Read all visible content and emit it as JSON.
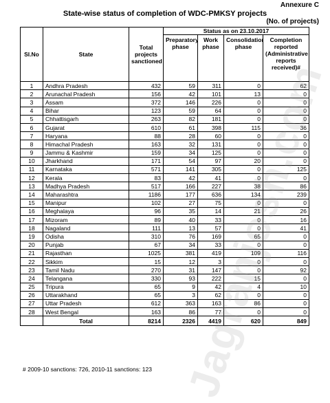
{
  "annexure": "Annexure C",
  "title": "State-wise status of completion of WDC-PMKSY projects",
  "unit": "(No. of projects)",
  "status_header": "Status as on 23.10.2017",
  "columns": {
    "sl": "Sl.No",
    "state": "State",
    "total": "Total projects sanctioned",
    "prep": "Preparatory phase",
    "work": "Work phase",
    "consol": "Consolidation phase",
    "completion": "Completion reported (Administrative reports received)#"
  },
  "rows": [
    {
      "sl": "1",
      "state": "Andhra Pradesh",
      "total": "432",
      "prep": "59",
      "work": "311",
      "consol": "0",
      "comp": "62"
    },
    {
      "sl": "2",
      "state": "Arunachal Pradesh",
      "total": "156",
      "prep": "42",
      "work": "101",
      "consol": "13",
      "comp": "0"
    },
    {
      "sl": "3",
      "state": "Assam",
      "total": "372",
      "prep": "146",
      "work": "226",
      "consol": "0",
      "comp": "0"
    },
    {
      "sl": "4",
      "state": "Bihar",
      "total": "123",
      "prep": "59",
      "work": "64",
      "consol": "0",
      "comp": "0"
    },
    {
      "sl": "5",
      "state": "Chhattisgarh",
      "total": "263",
      "prep": "82",
      "work": "181",
      "consol": "0",
      "comp": "0"
    },
    {
      "sl": "6",
      "state": "Gujarat",
      "total": "610",
      "prep": "61",
      "work": "398",
      "consol": "115",
      "comp": "36"
    },
    {
      "sl": "7",
      "state": "Haryana",
      "total": "88",
      "prep": "28",
      "work": "60",
      "consol": "0",
      "comp": "0"
    },
    {
      "sl": "8",
      "state": "Himachal Pradesh",
      "total": "163",
      "prep": "32",
      "work": "131",
      "consol": "0",
      "comp": "0"
    },
    {
      "sl": "9",
      "state": "Jammu & Kashmir",
      "total": "159",
      "prep": "34",
      "work": "125",
      "consol": "0",
      "comp": "0"
    },
    {
      "sl": "10",
      "state": "Jharkhand",
      "total": "171",
      "prep": "54",
      "work": "97",
      "consol": "20",
      "comp": "0"
    },
    {
      "sl": "11",
      "state": "Karnataka",
      "total": "571",
      "prep": "141",
      "work": "305",
      "consol": "0",
      "comp": "125"
    },
    {
      "sl": "12",
      "state": "Kerala",
      "total": "83",
      "prep": "42",
      "work": "41",
      "consol": "0",
      "comp": "0"
    },
    {
      "sl": "13",
      "state": "Madhya Pradesh",
      "total": "517",
      "prep": "166",
      "work": "227",
      "consol": "38",
      "comp": "86"
    },
    {
      "sl": "14",
      "state": "Maharashtra",
      "total": "1186",
      "prep": "177",
      "work": "636",
      "consol": "134",
      "comp": "239"
    },
    {
      "sl": "15",
      "state": "Manipur",
      "total": "102",
      "prep": "27",
      "work": "75",
      "consol": "0",
      "comp": "0"
    },
    {
      "sl": "16",
      "state": "Meghalaya",
      "total": "96",
      "prep": "35",
      "work": "14",
      "consol": "21",
      "comp": "26"
    },
    {
      "sl": "17",
      "state": "Mizoram",
      "total": "89",
      "prep": "40",
      "work": "33",
      "consol": "0",
      "comp": "16"
    },
    {
      "sl": "18",
      "state": "Nagaland",
      "total": "111",
      "prep": "13",
      "work": "57",
      "consol": "0",
      "comp": "41"
    },
    {
      "sl": "19",
      "state": "Odisha",
      "total": "310",
      "prep": "76",
      "work": "169",
      "consol": "65",
      "comp": "0"
    },
    {
      "sl": "20",
      "state": "Punjab",
      "total": "67",
      "prep": "34",
      "work": "33",
      "consol": "0",
      "comp": "0"
    },
    {
      "sl": "21",
      "state": "Rajasthan",
      "total": "1025",
      "prep": "381",
      "work": "419",
      "consol": "109",
      "comp": "116"
    },
    {
      "sl": "22",
      "state": "Sikkim",
      "total": "15",
      "prep": "12",
      "work": "3",
      "consol": "0",
      "comp": "0"
    },
    {
      "sl": "23",
      "state": "Tamil Nadu",
      "total": "270",
      "prep": "31",
      "work": "147",
      "consol": "0",
      "comp": "92"
    },
    {
      "sl": "24",
      "state": "Telangana",
      "total": "330",
      "prep": "93",
      "work": "222",
      "consol": "15",
      "comp": "0"
    },
    {
      "sl": "25",
      "state": "Tripura",
      "total": "65",
      "prep": "9",
      "work": "42",
      "consol": "4",
      "comp": "10"
    },
    {
      "sl": "26",
      "state": "Uttarakhand",
      "total": "65",
      "prep": "3",
      "work": "62",
      "consol": "0",
      "comp": "0"
    },
    {
      "sl": "27",
      "state": "Uttar Pradesh",
      "total": "612",
      "prep": "363",
      "work": "163",
      "consol": "86",
      "comp": "0"
    },
    {
      "sl": "28",
      "state": "West Bengal",
      "total": "163",
      "prep": "86",
      "work": "77",
      "consol": "0",
      "comp": "0"
    }
  ],
  "total_row": {
    "label": "Total",
    "total": "8214",
    "prep": "2326",
    "work": "4419",
    "consol": "620",
    "comp": "849"
  },
  "footnote": "# 2009-10 sanctions: 726, 2010-11 sanctions: 123",
  "watermark": "Jagranjosh.com"
}
